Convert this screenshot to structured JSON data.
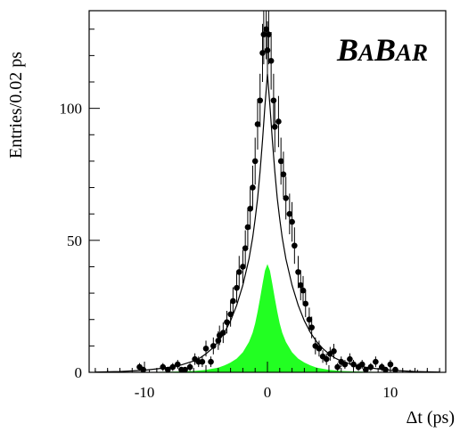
{
  "chart_data": {
    "type": "scatter",
    "xlabel": "Δt (ps)",
    "ylabel": "Entries/0.02 ps",
    "logo": {
      "b1": "B",
      "a1": "A",
      "b2": "B",
      "a2": "AR"
    },
    "xlim": [
      -14.5,
      14.5
    ],
    "ylim": [
      0,
      137
    ],
    "xticks": [
      -10,
      0,
      10
    ],
    "yticks": [
      0,
      50,
      100
    ],
    "grid": false,
    "series": [
      {
        "role": "data",
        "x": [
          -14,
          -13,
          -12,
          -10.4,
          -10.1,
          -9.6,
          -9.0,
          -8.5,
          -8.1,
          -7.7,
          -7.3,
          -7.0,
          -6.7,
          -6.3,
          -5.9,
          -5.6,
          -5.3,
          -5.0,
          -4.6,
          -4.4,
          -4.0,
          -3.9,
          -3.6,
          -3.3,
          -3.0,
          -2.8,
          -2.5,
          -2.3,
          -2.0,
          -1.8,
          -1.6,
          -1.4,
          -1.2,
          -1.0,
          -0.8,
          -0.6,
          -0.4,
          -0.3,
          -0.1,
          0.0,
          0.1,
          0.3,
          0.5,
          0.6,
          0.9,
          1.1,
          1.3,
          1.5,
          1.8,
          2.0,
          2.2,
          2.5,
          2.7,
          2.9,
          3.1,
          3.4,
          3.6,
          3.9,
          4.2,
          4.5,
          4.8,
          5.1,
          5.4,
          5.7,
          6.0,
          6.3,
          6.7,
          7.0,
          7.4,
          7.7,
          8.0,
          8.4,
          8.8,
          9.3,
          9.6,
          10.0,
          10.4,
          11.0,
          11.6,
          12.2,
          13.0,
          14.0
        ],
        "y": [
          0,
          0,
          0,
          2,
          1,
          0,
          0,
          2,
          1,
          2,
          3,
          1,
          1,
          2,
          5,
          4,
          4,
          9,
          4,
          10,
          12,
          14,
          15,
          19,
          22,
          27,
          32,
          38,
          40,
          47,
          55,
          62,
          70,
          80,
          94,
          103,
          121,
          128,
          130,
          122,
          128,
          118,
          103,
          93,
          95,
          80,
          75,
          66,
          60,
          57,
          48,
          38,
          33,
          31,
          26,
          20,
          17,
          10,
          9,
          6,
          5,
          7,
          8,
          2,
          4,
          3,
          5,
          3,
          2,
          3,
          1,
          2,
          4,
          2,
          1,
          3,
          1,
          0,
          0,
          0,
          0,
          0
        ],
        "err": [
          1,
          1,
          1,
          1.5,
          1,
          1,
          1,
          1.5,
          1,
          1.5,
          1.7,
          1,
          1,
          1.5,
          2.2,
          2,
          2,
          3,
          2,
          3.2,
          3.5,
          3.7,
          3.9,
          4.3,
          4.7,
          5.2,
          5.6,
          6.1,
          6.3,
          6.8,
          7.4,
          7.8,
          8.3,
          8.9,
          9.6,
          10.1,
          11,
          11.3,
          11.4,
          11,
          11.3,
          10.9,
          10.1,
          9.6,
          9.7,
          8.9,
          8.6,
          8.1,
          7.7,
          7.5,
          6.9,
          6.1,
          5.7,
          5.5,
          5.1,
          4.5,
          4.1,
          3.2,
          3,
          2.4,
          2.2,
          2.6,
          2.8,
          1.5,
          2,
          1.7,
          2.2,
          1.7,
          1.5,
          1.7,
          1,
          1.5,
          2,
          1.5,
          1,
          1.7,
          1,
          1,
          1,
          1,
          1,
          1
        ]
      },
      {
        "role": "fit",
        "x": [
          -14,
          -12,
          -10,
          -9,
          -8,
          -7,
          -6,
          -5.5,
          -5,
          -4.5,
          -4,
          -3.5,
          -3,
          -2.5,
          -2,
          -1.5,
          -1.2,
          -1,
          -0.8,
          -0.6,
          -0.4,
          -0.2,
          0,
          0.2,
          0.4,
          0.6,
          0.8,
          1,
          1.2,
          1.5,
          2,
          2.5,
          3,
          3.5,
          4,
          4.5,
          5,
          5.5,
          6,
          7,
          8,
          9,
          10,
          12,
          14
        ],
        "y": [
          0.1,
          0.3,
          0.8,
          1.3,
          1.9,
          2.8,
          4.3,
          5.4,
          7,
          9,
          11.6,
          15,
          19.5,
          25.4,
          33,
          43,
          51,
          58,
          66,
          76,
          88,
          101,
          113,
          101,
          88,
          76,
          66,
          58,
          51,
          43,
          33,
          25.4,
          19.5,
          15,
          11.6,
          9,
          7,
          5.4,
          4.3,
          2.8,
          1.9,
          1.3,
          0.8,
          0.3,
          0.1
        ]
      },
      {
        "role": "background",
        "color": "#22ff22",
        "x": [
          -14,
          -8,
          -6,
          -5,
          -4,
          -3.5,
          -3,
          -2.5,
          -2,
          -1.5,
          -1.2,
          -1,
          -0.8,
          -0.6,
          -0.4,
          -0.2,
          0,
          0.2,
          0.4,
          0.6,
          0.8,
          1,
          1.2,
          1.5,
          2,
          2.5,
          3,
          3.5,
          4,
          5,
          6,
          8,
          14
        ],
        "y": [
          0,
          0.2,
          0.5,
          0.9,
          1.8,
          2.6,
          3.7,
          5.2,
          7.6,
          11.5,
          15,
          18.5,
          23,
          28,
          33.5,
          38.5,
          41,
          38.5,
          33.5,
          28,
          23,
          18.5,
          15,
          11.5,
          7.6,
          5.2,
          3.7,
          2.6,
          1.8,
          0.9,
          0.5,
          0.2,
          0
        ]
      }
    ]
  }
}
